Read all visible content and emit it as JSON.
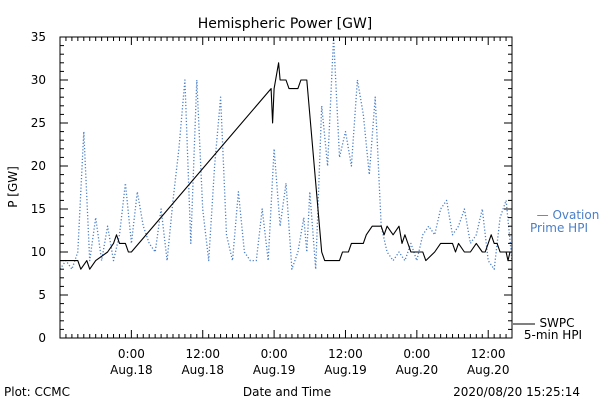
{
  "chart_data": {
    "type": "line",
    "title": "Hemispheric Power [GW]",
    "xlabel": "Date and Time",
    "ylabel": "P [GW]",
    "ylim": [
      0,
      35
    ],
    "yticks": [
      0,
      5,
      10,
      15,
      20,
      25,
      30,
      35
    ],
    "xlim": [
      "2020-08-17 12:00",
      "2020-08-20 16:00"
    ],
    "xticks": [
      {
        "time": "2020-08-18 00:00",
        "time_label": "0:00",
        "date_label": "Aug.18"
      },
      {
        "time": "2020-08-18 12:00",
        "time_label": "12:00",
        "date_label": "Aug.18"
      },
      {
        "time": "2020-08-19 00:00",
        "time_label": "0:00",
        "date_label": "Aug.19"
      },
      {
        "time": "2020-08-19 12:00",
        "time_label": "12:00",
        "date_label": "Aug.19"
      },
      {
        "time": "2020-08-20 00:00",
        "time_label": "0:00",
        "date_label": "Aug.20"
      },
      {
        "time": "2020-08-20 12:00",
        "time_label": "12:00",
        "date_label": "Aug.20"
      }
    ],
    "grid": false,
    "legend_position": "right",
    "series": [
      {
        "name": "SWPC 5-min HPI",
        "legend_lines": [
          "SWPC",
          "5-min HPI"
        ],
        "color": "#000000",
        "style": "solid",
        "points": [
          [
            "2020-08-17 12:00",
            9
          ],
          [
            "2020-08-17 15:00",
            9
          ],
          [
            "2020-08-17 15:30",
            8
          ],
          [
            "2020-08-17 16:30",
            9
          ],
          [
            "2020-08-17 17:00",
            8
          ],
          [
            "2020-08-17 18:00",
            9
          ],
          [
            "2020-08-17 20:00",
            10
          ],
          [
            "2020-08-17 21:00",
            11
          ],
          [
            "2020-08-17 21:30",
            12
          ],
          [
            "2020-08-17 22:00",
            11
          ],
          [
            "2020-08-17 23:00",
            11
          ],
          [
            "2020-08-17 23:30",
            10
          ],
          [
            "2020-08-18 00:00",
            10
          ],
          [
            "2020-08-18 23:30",
            29
          ],
          [
            "2020-08-18 23:45",
            25
          ],
          [
            "2020-08-19 00:00",
            29
          ],
          [
            "2020-08-19 00:45",
            32
          ],
          [
            "2020-08-19 01:00",
            30
          ],
          [
            "2020-08-19 02:00",
            30
          ],
          [
            "2020-08-19 02:30",
            29
          ],
          [
            "2020-08-19 04:00",
            29
          ],
          [
            "2020-08-19 04:30",
            30
          ],
          [
            "2020-08-19 05:30",
            30
          ],
          [
            "2020-08-19 08:00",
            10
          ],
          [
            "2020-08-19 08:30",
            9
          ],
          [
            "2020-08-19 11:00",
            9
          ],
          [
            "2020-08-19 11:30",
            10
          ],
          [
            "2020-08-19 12:30",
            10
          ],
          [
            "2020-08-19 13:00",
            11
          ],
          [
            "2020-08-19 15:00",
            11
          ],
          [
            "2020-08-19 15:30",
            12
          ],
          [
            "2020-08-19 16:30",
            13
          ],
          [
            "2020-08-19 18:00",
            13
          ],
          [
            "2020-08-19 18:30",
            12
          ],
          [
            "2020-08-19 19:00",
            13
          ],
          [
            "2020-08-19 20:00",
            12
          ],
          [
            "2020-08-19 21:00",
            13
          ],
          [
            "2020-08-19 21:30",
            11
          ],
          [
            "2020-08-19 22:00",
            12
          ],
          [
            "2020-08-19 23:00",
            10
          ],
          [
            "2020-08-20 01:00",
            10
          ],
          [
            "2020-08-20 01:30",
            9
          ],
          [
            "2020-08-20 03:00",
            10
          ],
          [
            "2020-08-20 04:00",
            11
          ],
          [
            "2020-08-20 06:00",
            11
          ],
          [
            "2020-08-20 06:30",
            10
          ],
          [
            "2020-08-20 07:00",
            11
          ],
          [
            "2020-08-20 08:00",
            10
          ],
          [
            "2020-08-20 09:00",
            10
          ],
          [
            "2020-08-20 10:00",
            11
          ],
          [
            "2020-08-20 11:00",
            10
          ],
          [
            "2020-08-20 11:30",
            10
          ],
          [
            "2020-08-20 12:00",
            11
          ],
          [
            "2020-08-20 12:30",
            12
          ],
          [
            "2020-08-20 13:00",
            11
          ],
          [
            "2020-08-20 13:30",
            11
          ],
          [
            "2020-08-20 14:00",
            10
          ],
          [
            "2020-08-20 15:00",
            10
          ],
          [
            "2020-08-20 15:20",
            9
          ],
          [
            "2020-08-20 15:40",
            10
          ]
        ]
      },
      {
        "name": "Ovation Prime HPI",
        "legend_lines": [
          "— Ovation",
          "Prime HPI"
        ],
        "color": "#4a7fc8",
        "style": "dotted",
        "points": [
          [
            "2020-08-17 12:00",
            8
          ],
          [
            "2020-08-17 13:00",
            9
          ],
          [
            "2020-08-17 14:00",
            8
          ],
          [
            "2020-08-17 15:00",
            10
          ],
          [
            "2020-08-17 16:00",
            24
          ],
          [
            "2020-08-17 17:00",
            9
          ],
          [
            "2020-08-17 18:00",
            14
          ],
          [
            "2020-08-17 19:00",
            9
          ],
          [
            "2020-08-17 20:00",
            13
          ],
          [
            "2020-08-17 21:00",
            9
          ],
          [
            "2020-08-17 22:00",
            12
          ],
          [
            "2020-08-17 23:00",
            18
          ],
          [
            "2020-08-18 00:00",
            11
          ],
          [
            "2020-08-18 01:00",
            17
          ],
          [
            "2020-08-18 02:00",
            13
          ],
          [
            "2020-08-18 03:00",
            11
          ],
          [
            "2020-08-18 04:00",
            10
          ],
          [
            "2020-08-18 05:00",
            15
          ],
          [
            "2020-08-18 06:00",
            9
          ],
          [
            "2020-08-18 07:00",
            16
          ],
          [
            "2020-08-18 08:00",
            22
          ],
          [
            "2020-08-18 09:00",
            30
          ],
          [
            "2020-08-18 10:00",
            11
          ],
          [
            "2020-08-18 11:00",
            30
          ],
          [
            "2020-08-18 12:00",
            15
          ],
          [
            "2020-08-18 13:00",
            9
          ],
          [
            "2020-08-18 14:00",
            20
          ],
          [
            "2020-08-18 15:00",
            28
          ],
          [
            "2020-08-18 16:00",
            12
          ],
          [
            "2020-08-18 17:00",
            9
          ],
          [
            "2020-08-18 18:00",
            17
          ],
          [
            "2020-08-18 19:00",
            10
          ],
          [
            "2020-08-18 20:00",
            9
          ],
          [
            "2020-08-18 21:00",
            9
          ],
          [
            "2020-08-18 22:00",
            15
          ],
          [
            "2020-08-18 23:00",
            9
          ],
          [
            "2020-08-19 00:00",
            22
          ],
          [
            "2020-08-19 01:00",
            13
          ],
          [
            "2020-08-19 02:00",
            18
          ],
          [
            "2020-08-19 03:00",
            8
          ],
          [
            "2020-08-19 04:00",
            10
          ],
          [
            "2020-08-19 05:00",
            14
          ],
          [
            "2020-08-19 05:30",
            10
          ],
          [
            "2020-08-19 06:00",
            17
          ],
          [
            "2020-08-19 07:00",
            8
          ],
          [
            "2020-08-19 08:00",
            27
          ],
          [
            "2020-08-19 09:00",
            20
          ],
          [
            "2020-08-19 10:00",
            35
          ],
          [
            "2020-08-19 11:00",
            21
          ],
          [
            "2020-08-19 12:00",
            24
          ],
          [
            "2020-08-19 13:00",
            20
          ],
          [
            "2020-08-19 14:00",
            30
          ],
          [
            "2020-08-19 15:00",
            26
          ],
          [
            "2020-08-19 16:00",
            19
          ],
          [
            "2020-08-19 17:00",
            28
          ],
          [
            "2020-08-19 18:00",
            13
          ],
          [
            "2020-08-19 19:00",
            10
          ],
          [
            "2020-08-19 20:00",
            9
          ],
          [
            "2020-08-19 21:00",
            10
          ],
          [
            "2020-08-19 22:00",
            9
          ],
          [
            "2020-08-19 23:00",
            11
          ],
          [
            "2020-08-20 00:00",
            9
          ],
          [
            "2020-08-20 01:00",
            12
          ],
          [
            "2020-08-20 02:00",
            13
          ],
          [
            "2020-08-20 03:00",
            12
          ],
          [
            "2020-08-20 04:00",
            15
          ],
          [
            "2020-08-20 05:00",
            16
          ],
          [
            "2020-08-20 06:00",
            12
          ],
          [
            "2020-08-20 07:00",
            13
          ],
          [
            "2020-08-20 08:00",
            15
          ],
          [
            "2020-08-20 09:00",
            11
          ],
          [
            "2020-08-20 10:00",
            12
          ],
          [
            "2020-08-20 11:00",
            15
          ],
          [
            "2020-08-20 12:00",
            9
          ],
          [
            "2020-08-20 13:00",
            8
          ],
          [
            "2020-08-20 14:00",
            14
          ],
          [
            "2020-08-20 15:00",
            16
          ],
          [
            "2020-08-20 16:00",
            9
          ]
        ]
      }
    ]
  },
  "footer": {
    "left": "Plot: CCMC",
    "right": "2020/08/20 15:25:14"
  }
}
